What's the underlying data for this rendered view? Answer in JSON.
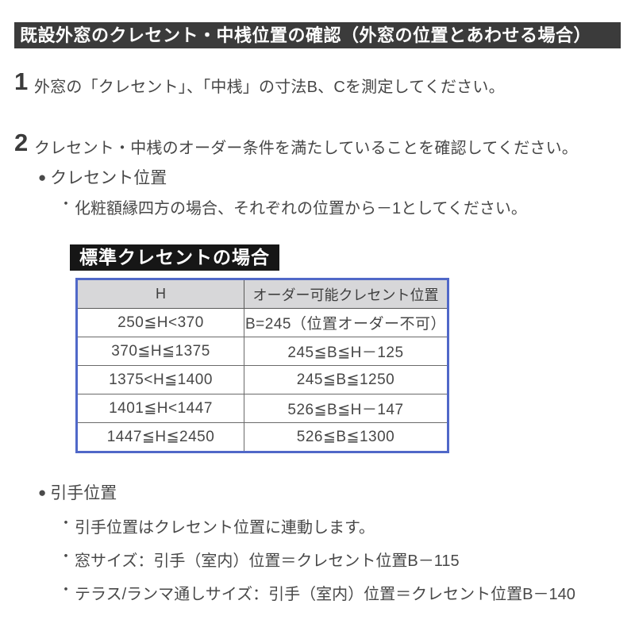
{
  "header": {
    "title": "既設外窓のクレセント・中桟位置の確認（外窓の位置とあわせる場合）"
  },
  "icons": {
    "bullet": "●",
    "dot": "・"
  },
  "steps": [
    {
      "num": "1",
      "text": "外窓の「クレセント」、「中桟」の寸法B、Cを測定してください。"
    },
    {
      "num": "2",
      "text": "クレセント・中桟のオーダー条件を満たしていることを確認してください。"
    }
  ],
  "crescent": {
    "heading": "クレセント位置",
    "note": "化粧額縁四方の場合、それぞれの位置から－1としてください。"
  },
  "standard": {
    "title": "標準クレセントの場合",
    "table": {
      "headers": [
        "H",
        "オーダー可能クレセント位置"
      ],
      "rows": [
        [
          "250≦H<370",
          "B=245（位置オーダー不可）"
        ],
        [
          "370≦H≦1375",
          "245≦B≦H－125"
        ],
        [
          "1375<H≦1400",
          "245≦B≦1250"
        ],
        [
          "1401≦H<1447",
          "526≦B≦H－147"
        ],
        [
          "1447≦H≦2450",
          "526≦B≦1300"
        ]
      ]
    }
  },
  "handle": {
    "heading": "引手位置",
    "notes": [
      "引手位置はクレセント位置に連動します。",
      "窓サイズ：引手（室内）位置＝クレセント位置B－115",
      "テラス/ランマ通しサイズ：引手（室内）位置＝クレセント位置B－140"
    ]
  },
  "colors": {
    "header_bar_bg": "#3b3b3b",
    "section_title_bg": "#161616",
    "table_border": "#5068c8",
    "table_header_bg": "#d7d7d9",
    "text": "#464646"
  }
}
